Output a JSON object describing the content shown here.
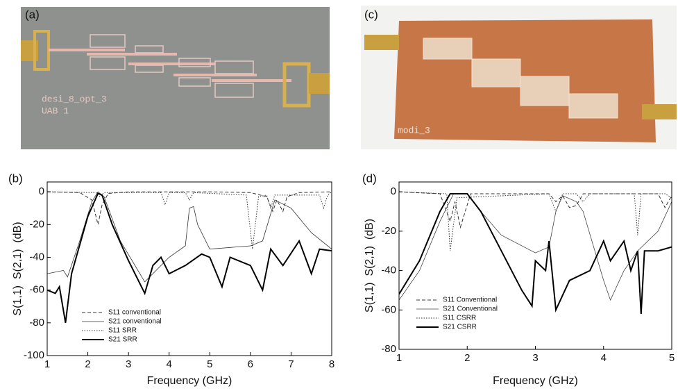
{
  "photos": [
    {
      "label": "(a)",
      "texts": [
        "desi_8_opt_3",
        "UAB 1"
      ]
    },
    {
      "label": "(c)",
      "texts": [
        "modi_3"
      ]
    }
  ],
  "chart_data": [
    {
      "type": "line",
      "label": "(b)",
      "xlabel": "Frequency (GHz)",
      "ylabel": "S(1,1)  S(2,1)  (dB)",
      "xlim": [
        1,
        8
      ],
      "ylim": [
        -100,
        6
      ],
      "xticks": [
        1,
        2,
        3,
        4,
        5,
        6,
        7,
        8
      ],
      "yticks": [
        0,
        -20,
        -40,
        -60,
        -80,
        -100
      ],
      "series": [
        {
          "name": "S11 conventional",
          "color": "#333333",
          "dash": "dashed",
          "width": 1,
          "x": [
            1,
            1.8,
            2.1,
            2.25,
            2.35,
            2.5,
            3,
            4,
            5,
            6,
            6.4,
            6.55,
            6.65,
            6.8,
            6.9,
            7.2,
            8
          ],
          "values": [
            0,
            -0.5,
            -5,
            -20,
            -8,
            -1,
            0,
            0,
            0,
            -0.5,
            -3,
            -12,
            -5,
            -12,
            -3,
            -0.5,
            0
          ]
        },
        {
          "name": "S21 conventional",
          "color": "#333333",
          "dash": "solid",
          "width": 0.8,
          "x": [
            1,
            1.4,
            1.5,
            1.8,
            2.1,
            2.25,
            2.4,
            2.8,
            3.4,
            4,
            4.4,
            4.5,
            4.6,
            4.7,
            5,
            6,
            6.3,
            6.6,
            7,
            7.5,
            8
          ],
          "values": [
            -50,
            -48,
            -52,
            -30,
            -6,
            0,
            -3,
            -30,
            -55,
            -40,
            -33,
            -10,
            -9,
            -20,
            -35,
            -33,
            -30,
            -5,
            -10,
            -25,
            -35
          ]
        },
        {
          "name": "S11 SRR",
          "color": "#333333",
          "dash": "dotted",
          "width": 1,
          "x": [
            1,
            2.2,
            2.3,
            2.4,
            3.8,
            3.9,
            4.0,
            4.4,
            4.5,
            4.6,
            5.9,
            6.05,
            6.2,
            6.4,
            6.5,
            6.6,
            7.7,
            7.8,
            7.9,
            8
          ],
          "values": [
            0,
            -0.5,
            -3,
            -0.5,
            -0.5,
            -8,
            -0.5,
            -0.5,
            -5,
            -0.5,
            -2,
            -35,
            -3,
            -2,
            -10,
            -2,
            -2,
            -10,
            -2,
            0
          ]
        },
        {
          "name": "S21 SRR",
          "color": "#000000",
          "dash": "solid",
          "width": 2,
          "x": [
            1,
            1.2,
            1.3,
            1.45,
            1.6,
            2.0,
            2.25,
            2.35,
            2.6,
            3.0,
            3.4,
            3.6,
            3.8,
            4.0,
            4.4,
            4.8,
            5.0,
            5.3,
            5.5,
            6.0,
            6.3,
            6.5,
            6.8,
            7.2,
            7.5,
            7.7,
            8
          ],
          "values": [
            -60,
            -62,
            -58,
            -80,
            -50,
            -15,
            -1,
            -2,
            -20,
            -42,
            -62,
            -45,
            -40,
            -50,
            -45,
            -38,
            -40,
            -58,
            -40,
            -45,
            -60,
            -35,
            -45,
            -30,
            -50,
            -35,
            -36
          ]
        }
      ]
    },
    {
      "type": "line",
      "label": "(d)",
      "xlabel": "Frequency (GHz)",
      "ylabel": "S(1,1)  S(2,1)  (dB)",
      "xlim": [
        1,
        5
      ],
      "ylim": [
        -80,
        5
      ],
      "xticks": [
        1,
        2,
        3,
        4,
        5
      ],
      "yticks": [
        0,
        -20,
        -40,
        -60,
        -80
      ],
      "series": [
        {
          "name": "S11 Conventional",
          "color": "#333333",
          "dash": "dashed",
          "width": 1,
          "x": [
            1,
            1.6,
            1.75,
            1.82,
            1.9,
            2.05,
            3.2,
            3.3,
            3.4,
            3.5,
            3.6,
            3.7,
            4.8,
            4.9,
            5
          ],
          "values": [
            0,
            -1,
            -15,
            -5,
            -18,
            -1,
            -1,
            -5,
            -2,
            -8,
            -7,
            -1,
            -1,
            -8,
            -2
          ]
        },
        {
          "name": "S21 Conventional",
          "color": "#444444",
          "dash": "solid",
          "width": 0.8,
          "x": [
            1,
            1.3,
            1.6,
            1.8,
            2.0,
            2.2,
            2.5,
            3.0,
            3.2,
            3.3,
            3.4,
            3.6,
            3.7,
            4.0,
            4.1,
            4.3,
            4.5,
            4.8,
            5
          ],
          "values": [
            -55,
            -40,
            -15,
            -1,
            -1,
            -10,
            -22,
            -31,
            -28,
            -10,
            -2,
            -5,
            -10,
            -45,
            -55,
            -40,
            -30,
            -20,
            -5
          ]
        },
        {
          "name": "S11 CSRR",
          "color": "#333333",
          "dash": "dotted",
          "width": 1,
          "x": [
            1,
            1.7,
            1.75,
            1.85,
            3.2,
            3.3,
            3.4,
            3.6,
            3.7,
            3.8,
            4.45,
            4.5,
            4.55,
            4.9,
            5
          ],
          "values": [
            0,
            -1,
            -30,
            -3,
            -1,
            -10,
            -1,
            -1,
            -5,
            -1,
            -1,
            -22,
            -1,
            -1,
            -3
          ]
        },
        {
          "name": "S21 CSRR",
          "color": "#000000",
          "dash": "solid",
          "width": 2,
          "x": [
            1,
            1.3,
            1.6,
            1.75,
            2.0,
            2.2,
            2.5,
            2.8,
            2.95,
            3.0,
            3.15,
            3.2,
            3.3,
            3.5,
            3.8,
            4.0,
            4.1,
            4.3,
            4.4,
            4.5,
            4.55,
            4.6,
            4.8,
            5
          ],
          "values": [
            -52,
            -35,
            -10,
            -1,
            -1,
            -10,
            -30,
            -50,
            -58,
            -35,
            -40,
            -25,
            -60,
            -45,
            -40,
            -25,
            -35,
            -25,
            -40,
            -30,
            -62,
            -30,
            -30,
            -28
          ]
        }
      ]
    }
  ]
}
